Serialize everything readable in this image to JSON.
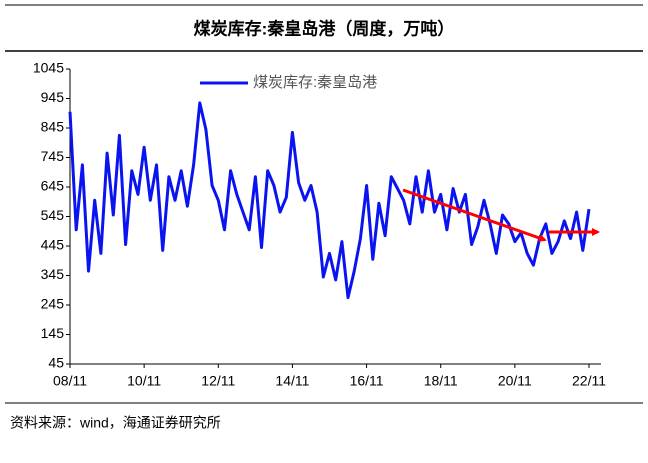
{
  "chart_data": {
    "type": "line",
    "title": "煤炭库存:秦皇岛港（周度，万吨）",
    "source": "资料来源：wind，海通证券研究所",
    "x": [
      "08/11",
      "09/01",
      "09/03",
      "09/05",
      "09/07",
      "09/09",
      "09/11",
      "10/01",
      "10/03",
      "10/05",
      "10/07",
      "10/09",
      "10/11",
      "11/01",
      "11/03",
      "11/05",
      "11/07",
      "11/09",
      "11/11",
      "12/01",
      "12/03",
      "12/05",
      "12/07",
      "12/09",
      "12/11",
      "13/01",
      "13/03",
      "13/05",
      "13/07",
      "13/09",
      "13/11",
      "14/01",
      "14/03",
      "14/05",
      "14/07",
      "14/09",
      "14/11",
      "15/01",
      "15/03",
      "15/05",
      "15/07",
      "15/09",
      "15/11",
      "16/01",
      "16/03",
      "16/05",
      "16/07",
      "16/09",
      "16/11",
      "17/01",
      "17/03",
      "17/05",
      "17/07",
      "17/09",
      "17/11",
      "18/01",
      "18/03",
      "18/05",
      "18/07",
      "18/09",
      "18/11",
      "19/01",
      "19/03",
      "19/05",
      "19/07",
      "19/09",
      "19/11",
      "20/01",
      "20/03",
      "20/05",
      "20/07",
      "20/09",
      "20/11",
      "21/01",
      "21/03",
      "21/05",
      "21/07",
      "21/09",
      "21/11",
      "22/01",
      "22/03",
      "22/05",
      "22/07",
      "22/09",
      "22/11"
    ],
    "series": [
      {
        "name": "煤炭库存:秦皇岛港",
        "color": "#0a14f0",
        "values": [
          900,
          500,
          720,
          360,
          600,
          420,
          760,
          550,
          820,
          450,
          700,
          620,
          780,
          600,
          720,
          430,
          680,
          600,
          700,
          580,
          720,
          930,
          840,
          650,
          600,
          500,
          700,
          620,
          560,
          500,
          680,
          440,
          700,
          650,
          560,
          610,
          830,
          660,
          600,
          650,
          560,
          340,
          420,
          330,
          460,
          270,
          360,
          470,
          650,
          400,
          590,
          480,
          680,
          640,
          600,
          520,
          680,
          560,
          700,
          560,
          620,
          500,
          640,
          560,
          620,
          450,
          510,
          600,
          520,
          420,
          550,
          520,
          460,
          490,
          420,
          380,
          470,
          520,
          420,
          460,
          530,
          470,
          560,
          430,
          570
        ]
      }
    ],
    "xticks": [
      "08/11",
      "10/11",
      "12/11",
      "14/11",
      "16/11",
      "18/11",
      "20/11",
      "22/11"
    ],
    "ylim": [
      45,
      1045
    ],
    "yticks": [
      45,
      145,
      245,
      345,
      445,
      545,
      645,
      745,
      845,
      945,
      1045
    ]
  }
}
